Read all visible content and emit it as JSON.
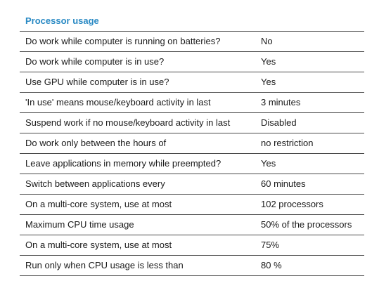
{
  "section": {
    "title": "Processor usage"
  },
  "rows": [
    {
      "label": "Do work while computer is running on batteries?",
      "value": "No"
    },
    {
      "label": "Do work while computer is in use?",
      "value": "Yes"
    },
    {
      "label": "Use GPU while computer is in use?",
      "value": "Yes"
    },
    {
      "label": "'In use' means mouse/keyboard activity in last",
      "value": "3 minutes"
    },
    {
      "label": "Suspend work if no mouse/keyboard activity in last",
      "value": "Disabled"
    },
    {
      "label": "Do work only between the hours of",
      "value": "no restriction"
    },
    {
      "label": "Leave applications in memory while preempted?",
      "value": "Yes"
    },
    {
      "label": "Switch between applications every",
      "value": "60 minutes"
    },
    {
      "label": "On a multi-core system, use at most",
      "value": "102 processors"
    },
    {
      "label": "Maximum CPU time usage",
      "value": "50% of the processors"
    },
    {
      "label": "On a multi-core system, use at most",
      "value": "75%"
    },
    {
      "label": "Run only when CPU usage is less than",
      "value": "80 %"
    }
  ],
  "colors": {
    "title": "#2a8ac4",
    "text": "#1a1a1a",
    "divider": "#4a4a4a"
  }
}
